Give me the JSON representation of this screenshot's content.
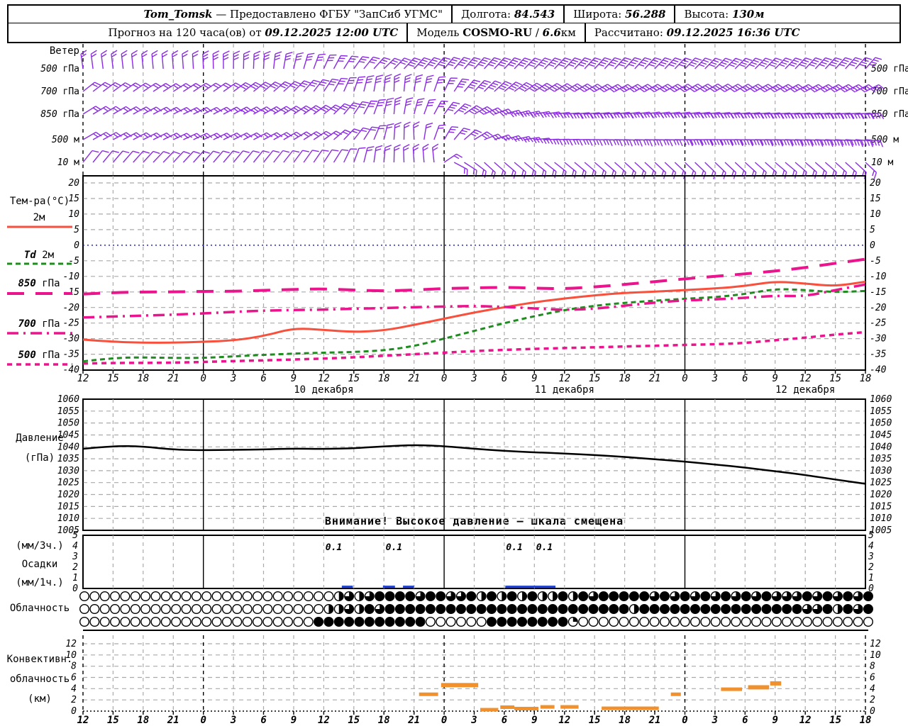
{
  "header": {
    "line1": {
      "segments": [
        {
          "parts": [
            [
              "Tom_Tomsk",
              "i"
            ],
            [
              " — Предоставлено ФГБУ \"ЗапСиб УГМС\"",
              ""
            ]
          ]
        },
        {
          "parts": [
            [
              "Долгота: ",
              ""
            ],
            [
              "84.543",
              "i"
            ]
          ]
        },
        {
          "parts": [
            [
              "Широта: ",
              ""
            ],
            [
              "56.288",
              "i"
            ]
          ]
        },
        {
          "parts": [
            [
              "Высота: ",
              ""
            ],
            [
              "130м",
              "i"
            ]
          ]
        }
      ]
    },
    "line2": {
      "segments": [
        {
          "parts": [
            [
              "Прогноз на 120 часа(ов) от ",
              ""
            ],
            [
              "09.12.2025 12:00 UTC",
              "i"
            ]
          ]
        },
        {
          "parts": [
            [
              "Модель ",
              ""
            ],
            [
              "COSMO-RU",
              "b"
            ],
            [
              " / ",
              ""
            ],
            [
              "6.6",
              "i"
            ],
            [
              "км",
              ""
            ]
          ]
        },
        {
          "parts": [
            [
              "Рассчитано: ",
              ""
            ],
            [
              "09.12.2025 16:36 UTC",
              "i"
            ]
          ]
        }
      ]
    }
  },
  "panel_titles": {
    "wind": "Ветер",
    "temp": "Тем-ра(°C)",
    "pressure1": "Давление",
    "pressure2": "(гПа)",
    "precip1": "(мм/3ч.)",
    "precip2": "Осадки",
    "precip3": "(мм/1ч.)",
    "cloud": "Облачность",
    "conv1": "Конвективн.",
    "conv2": "облачность",
    "conv3": "(км)",
    "warning": "Внимание! Высокое давление — шкала смещена"
  },
  "wind_levels": [
    "500 гПа",
    "700 гПа",
    "850 гПа",
    "500 м",
    "10 м"
  ],
  "time_axis": {
    "start": "09.12.2025 12:00 UTC",
    "step_hours": 3,
    "labels": [
      "12",
      "15",
      "18",
      "21",
      "0",
      "3",
      "6",
      "9",
      "12",
      "15",
      "18",
      "21",
      "0",
      "3",
      "6",
      "9",
      "12",
      "15",
      "18",
      "21",
      "0",
      "3",
      "6",
      "9",
      "12",
      "15",
      "18"
    ],
    "dates": [
      {
        "text": "10 декабря",
        "h": 24
      },
      {
        "text": "11 декабря",
        "h": 48
      },
      {
        "text": "12 декабря",
        "h": 72
      }
    ]
  },
  "axes": {
    "temp_ticks": [
      "20",
      "15",
      "10",
      "5",
      "0",
      "-5",
      "-10",
      "-15",
      "-20",
      "-25",
      "-30",
      "-35",
      "-40"
    ],
    "pressure_ticks": [
      "1060",
      "1055",
      "1050",
      "1045",
      "1040",
      "1035",
      "1030",
      "1025",
      "1020",
      "1015",
      "1010",
      "1005"
    ],
    "precip_ticks": [
      "5",
      "4",
      "3",
      "2",
      "1",
      "0"
    ],
    "conv_ticks": [
      "12",
      "10",
      "8",
      "6",
      "4",
      "2",
      "0"
    ]
  },
  "legend": [
    {
      "parts": [
        [
          "2м",
          0
        ]
      ],
      "series": "t2m"
    },
    {
      "parts": [
        [
          "Td",
          1
        ],
        [
          " 2м",
          0
        ]
      ],
      "series": "td2m"
    },
    {
      "parts": [
        [
          "850",
          1
        ],
        [
          " гПа",
          0
        ]
      ],
      "series": "t850"
    },
    {
      "parts": [
        [
          "700",
          1
        ],
        [
          " гПа",
          0
        ]
      ],
      "series": "t700"
    },
    {
      "parts": [
        [
          "500",
          1
        ],
        [
          " гПа",
          0
        ]
      ],
      "series": "t500"
    }
  ],
  "colors": {
    "barb": "#8a2be2",
    "red": "#f8503c",
    "green": "#1e8c1e",
    "pink": "#ea158c",
    "zero_line": "#2222ee",
    "precip_bar": "#2847c8",
    "conv_bar": "#f0912e",
    "grid": "#aaaaaa",
    "black": "#000000"
  },
  "chart_data": [
    {
      "type": "scatter",
      "name": "wind-barbs",
      "title": "Ветер",
      "rows": [
        {
          "level": "500 гПа",
          "dir_keypoints": [
            [
              0,
              -8
            ],
            [
              10,
              -4
            ],
            [
              18,
              3
            ],
            [
              22,
              16
            ],
            [
              26,
              32
            ],
            [
              30,
              45
            ],
            [
              36,
              40
            ],
            [
              44,
              44
            ],
            [
              54,
              42
            ],
            [
              64,
              45
            ],
            [
              72,
              43
            ],
            [
              78,
              41
            ]
          ],
          "feather_keypoints": [
            [
              0,
              2
            ],
            [
              24,
              3
            ],
            [
              40,
              4
            ],
            [
              78,
              4
            ]
          ]
        },
        {
          "level": "700 гПа",
          "dir_keypoints": [
            [
              0,
              52
            ],
            [
              8,
              58
            ],
            [
              14,
              55
            ],
            [
              20,
              48
            ],
            [
              24,
              34
            ],
            [
              28,
              14
            ],
            [
              31,
              2
            ],
            [
              34,
              12
            ],
            [
              38,
              40
            ],
            [
              44,
              56
            ],
            [
              52,
              62
            ],
            [
              62,
              60
            ],
            [
              70,
              62
            ],
            [
              78,
              63
            ]
          ],
          "feather_keypoints": [
            [
              0,
              2
            ],
            [
              30,
              3
            ],
            [
              44,
              4
            ],
            [
              78,
              4
            ]
          ]
        },
        {
          "level": "850 гПа",
          "dir_keypoints": [
            [
              0,
              58
            ],
            [
              10,
              64
            ],
            [
              18,
              60
            ],
            [
              24,
              52
            ],
            [
              28,
              28
            ],
            [
              31,
              5
            ],
            [
              34,
              20
            ],
            [
              38,
              55
            ],
            [
              42,
              75
            ],
            [
              48,
              85
            ],
            [
              56,
              82
            ],
            [
              64,
              84
            ],
            [
              72,
              86
            ],
            [
              78,
              86
            ]
          ],
          "feather_keypoints": [
            [
              0,
              2
            ],
            [
              30,
              3
            ],
            [
              42,
              4
            ],
            [
              78,
              4
            ]
          ]
        },
        {
          "level": "500 м",
          "dir_keypoints": [
            [
              0,
              60
            ],
            [
              10,
              65
            ],
            [
              18,
              62
            ],
            [
              24,
              55
            ],
            [
              28,
              32
            ],
            [
              31,
              4
            ],
            [
              33,
              -2
            ],
            [
              36,
              30
            ],
            [
              40,
              68
            ],
            [
              46,
              88
            ],
            [
              54,
              92
            ],
            [
              62,
              90
            ],
            [
              70,
              92
            ],
            [
              78,
              94
            ]
          ],
          "feather_keypoints": [
            [
              0,
              2
            ],
            [
              30,
              2
            ],
            [
              42,
              3
            ],
            [
              78,
              4
            ]
          ]
        },
        {
          "level": "10 м",
          "dir_keypoints": [
            [
              0,
              38
            ],
            [
              8,
              44
            ],
            [
              14,
              40
            ],
            [
              20,
              38
            ],
            [
              25,
              32
            ],
            [
              29,
              8
            ],
            [
              32,
              -2
            ],
            [
              35,
              -6
            ],
            [
              37,
              118
            ],
            [
              40,
              132
            ],
            [
              46,
              128
            ],
            [
              54,
              132
            ],
            [
              62,
              134
            ],
            [
              70,
              130
            ],
            [
              78,
              133
            ]
          ],
          "feather_keypoints": [
            [
              0,
              1
            ],
            [
              20,
              1
            ],
            [
              36,
              2
            ],
            [
              78,
              2
            ]
          ]
        }
      ]
    },
    {
      "type": "line",
      "name": "temperature",
      "title": "Тем-ра(°C)",
      "ylabel": "°C",
      "ylim": [
        -40,
        20
      ],
      "hours_start": 0,
      "hours_step": 3,
      "series": [
        {
          "key": "t2m",
          "name": "2м",
          "values": [
            -30.3,
            -31.0,
            -31.3,
            -31.3,
            -31.0,
            -30.6,
            -29.2,
            -26.6,
            -27.2,
            -27.9,
            -27.4,
            -25.6,
            -23.6,
            -21.6,
            -19.9,
            -18.3,
            -17.1,
            -16.1,
            -15.3,
            -14.9,
            -14.4,
            -13.9,
            -13.1,
            -11.6,
            -12.3,
            -13.2,
            -11.7
          ]
        },
        {
          "key": "td2m",
          "name": "Td 2м",
          "values": [
            -37.3,
            -36.2,
            -36.0,
            -36.2,
            -36.2,
            -35.7,
            -35.2,
            -34.8,
            -34.5,
            -34.3,
            -33.8,
            -32.4,
            -30.0,
            -27.5,
            -25.0,
            -22.8,
            -20.8,
            -19.4,
            -18.5,
            -17.8,
            -17.2,
            -16.7,
            -15.7,
            -14.0,
            -14.4,
            -15.1,
            -14.7
          ]
        },
        {
          "key": "t850",
          "name": "850 гПа",
          "values": [
            -15.7,
            -15.2,
            -15.0,
            -15.0,
            -14.8,
            -14.8,
            -14.5,
            -14.2,
            -14.0,
            -14.4,
            -14.7,
            -14.4,
            -13.9,
            -13.7,
            -13.5,
            -13.8,
            -14.0,
            -13.4,
            -12.6,
            -11.7,
            -10.8,
            -10.0,
            -9.2,
            -8.3,
            -7.2,
            -5.8,
            -4.5
          ]
        },
        {
          "key": "t700",
          "name": "700 гПа",
          "values": [
            -23.2,
            -22.9,
            -22.6,
            -22.3,
            -21.9,
            -21.4,
            -21.0,
            -20.8,
            -20.7,
            -20.4,
            -20.2,
            -19.9,
            -19.7,
            -19.5,
            -19.8,
            -20.3,
            -20.8,
            -20.4,
            -19.4,
            -18.4,
            -17.7,
            -17.4,
            -16.9,
            -16.2,
            -16.4,
            -14.4,
            -12.6
          ]
        },
        {
          "key": "t500",
          "name": "500 гПа",
          "values": [
            -38.0,
            -37.8,
            -37.8,
            -37.7,
            -37.5,
            -37.2,
            -37.0,
            -36.7,
            -36.4,
            -36.0,
            -35.5,
            -35.0,
            -34.5,
            -34.0,
            -33.6,
            -33.3,
            -33.0,
            -32.8,
            -32.5,
            -32.3,
            -32.0,
            -31.8,
            -31.4,
            -30.5,
            -29.7,
            -28.7,
            -27.9
          ]
        }
      ]
    },
    {
      "type": "line",
      "name": "pressure",
      "title": "Давление (гПа)",
      "ylim": [
        1005,
        1060
      ],
      "hours_start": 0,
      "hours_step": 3,
      "values": [
        1039.2,
        1040.4,
        1040.2,
        1038.8,
        1038.6,
        1038.7,
        1038.9,
        1039.3,
        1039.1,
        1039.4,
        1040.2,
        1040.8,
        1040.3,
        1039.2,
        1038.3,
        1037.7,
        1037.2,
        1036.6,
        1035.8,
        1034.8,
        1033.8,
        1032.6,
        1031.3,
        1029.8,
        1028.2,
        1026.3,
        1024.5
      ],
      "warning": "Внимание! Высокое давление — шкала смещена"
    },
    {
      "type": "bar",
      "name": "precipitation",
      "title": "Осадки (мм/3ч.) (мм/1ч.)",
      "ylim": [
        0,
        5
      ],
      "value_labels": [
        {
          "h": 25,
          "text": "0.1"
        },
        {
          "h": 31,
          "text": "0.1"
        },
        {
          "h": 43,
          "text": "0.1"
        },
        {
          "h": 46,
          "text": "0.1"
        }
      ],
      "bars": [
        {
          "h1": 25.8,
          "h2": 26.9,
          "v": 0.1
        },
        {
          "h1": 29.9,
          "h2": 31.1,
          "v": 0.1
        },
        {
          "h1": 31.9,
          "h2": 33.0,
          "v": 0.1
        },
        {
          "h1": 42.1,
          "h2": 47.1,
          "v": 0.1
        }
      ]
    },
    {
      "type": "scatter",
      "name": "cloud-cover",
      "title": "Облачность",
      "fill_scale": "0=clear,4=overcast (quarters)",
      "rows": [
        "000000000000000000000000023234444344334242424224243444443434343434343334343434",
        "000000000000000000000000223243444444444444444444444444244444444444444443342434",
        "000000000000000000000004444444444400000044444444100000000000000000000000000000"
      ]
    },
    {
      "type": "bar",
      "name": "convective-cloud",
      "title": "Конвективн. облачность (км)",
      "ylim": [
        0,
        13
      ],
      "bars": [
        {
          "h1": 33.5,
          "h2": 35.4,
          "v": 3.0
        },
        {
          "h1": 35.7,
          "h2": 39.4,
          "v": 4.7
        },
        {
          "h1": 39.6,
          "h2": 41.4,
          "v": 0.25
        },
        {
          "h1": 41.6,
          "h2": 43.0,
          "v": 0.7
        },
        {
          "h1": 43.0,
          "h2": 45.4,
          "v": 0.45
        },
        {
          "h1": 45.6,
          "h2": 47.0,
          "v": 0.75
        },
        {
          "h1": 47.6,
          "h2": 49.4,
          "v": 0.75
        },
        {
          "h1": 51.7,
          "h2": 57.4,
          "v": 0.5
        },
        {
          "h1": 58.6,
          "h2": 59.6,
          "v": 3.0
        },
        {
          "h1": 63.6,
          "h2": 65.7,
          "v": 3.9
        },
        {
          "h1": 66.3,
          "h2": 68.4,
          "v": 4.3
        },
        {
          "h1": 68.5,
          "h2": 69.6,
          "v": 5.0
        }
      ]
    }
  ]
}
